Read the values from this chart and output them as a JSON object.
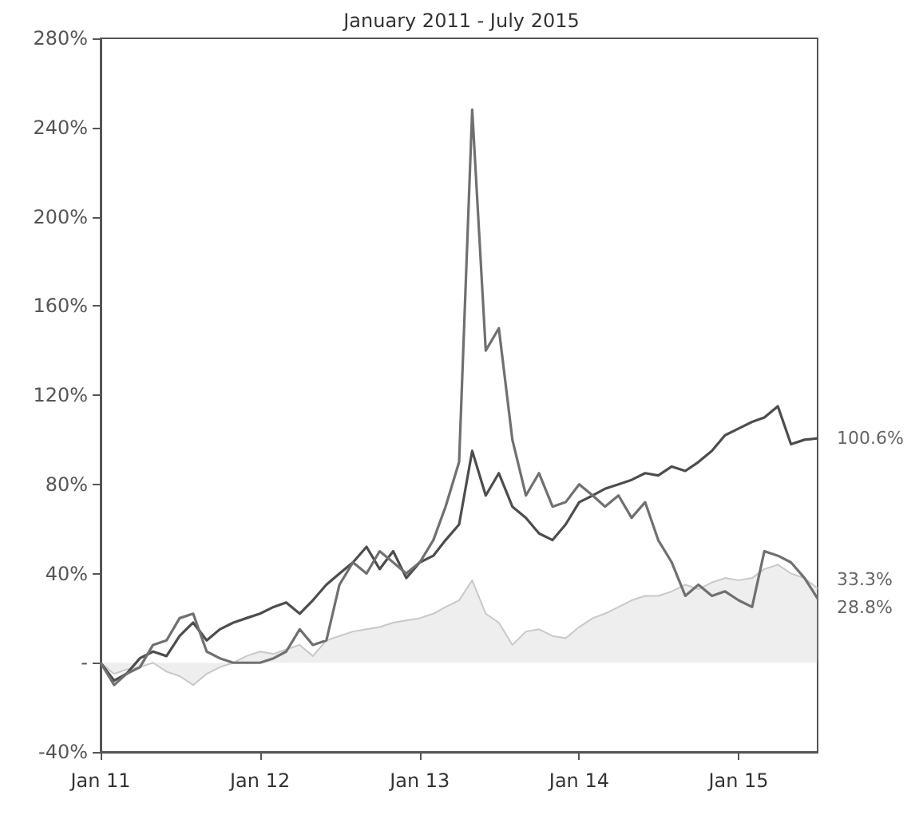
{
  "chart_data": {
    "type": "line",
    "title": "January 2011 - July 2015",
    "x": [
      "2011-01",
      "2011-02",
      "2011-03",
      "2011-04",
      "2011-05",
      "2011-06",
      "2011-07",
      "2011-08",
      "2011-09",
      "2011-10",
      "2011-11",
      "2011-12",
      "2012-01",
      "2012-02",
      "2012-03",
      "2012-04",
      "2012-05",
      "2012-06",
      "2012-07",
      "2012-08",
      "2012-09",
      "2012-10",
      "2012-11",
      "2012-12",
      "2013-01",
      "2013-02",
      "2013-03",
      "2013-04",
      "2013-05",
      "2013-06",
      "2013-07",
      "2013-08",
      "2013-09",
      "2013-10",
      "2013-11",
      "2013-12",
      "2014-01",
      "2014-02",
      "2014-03",
      "2014-04",
      "2014-05",
      "2014-06",
      "2014-07",
      "2014-08",
      "2014-09",
      "2014-10",
      "2014-11",
      "2014-12",
      "2015-01",
      "2015-02",
      "2015-03",
      "2015-04",
      "2015-05",
      "2015-06",
      "2015-07"
    ],
    "series": [
      {
        "type": "area",
        "color": "#c8c8c8",
        "values": [
          0,
          -5,
          -3,
          -2,
          0,
          -4,
          -6,
          -10,
          -5,
          -2,
          0,
          3,
          5,
          4,
          6,
          8,
          3,
          10,
          12,
          14,
          15,
          16,
          18,
          19,
          20,
          22,
          25,
          28,
          37,
          22,
          18,
          8,
          14,
          15,
          12,
          11,
          16,
          20,
          22,
          25,
          28,
          30,
          30,
          32,
          35,
          33,
          36,
          38,
          37,
          38,
          42,
          44,
          40,
          38,
          33.3
        ]
      },
      {
        "color": "#4d4d4d",
        "values": [
          0,
          -8,
          -5,
          2,
          5,
          3,
          12,
          18,
          10,
          15,
          18,
          20,
          22,
          25,
          27,
          22,
          28,
          35,
          40,
          45,
          52,
          42,
          50,
          38,
          45,
          48,
          55,
          62,
          95,
          75,
          85,
          70,
          65,
          58,
          55,
          62,
          72,
          75,
          78,
          80,
          82,
          85,
          84,
          88,
          86,
          90,
          95,
          102,
          105,
          108,
          110,
          115,
          98,
          100,
          100.6
        ]
      },
      {
        "color": "#707070",
        "values": [
          0,
          -10,
          -5,
          -2,
          8,
          10,
          20,
          22,
          5,
          2,
          0,
          0,
          0,
          2,
          5,
          15,
          8,
          10,
          35,
          45,
          40,
          50,
          45,
          40,
          45,
          55,
          70,
          90,
          248,
          140,
          150,
          100,
          75,
          85,
          70,
          72,
          80,
          75,
          70,
          75,
          65,
          72,
          55,
          45,
          30,
          35,
          30,
          32,
          28,
          25,
          50,
          48,
          45,
          38,
          28.8
        ]
      }
    ],
    "xlim": [
      "2011-01",
      "2015-07"
    ],
    "xticks": [
      {
        "value": "2011-01",
        "label": "Jan 11"
      },
      {
        "value": "2012-01",
        "label": "Jan 12"
      },
      {
        "value": "2013-01",
        "label": "Jan 13"
      },
      {
        "value": "2014-01",
        "label": "Jan 14"
      },
      {
        "value": "2015-01",
        "label": "Jan 15"
      }
    ],
    "ylim": [
      -40,
      280
    ],
    "yticks": [
      {
        "value": -40,
        "label": "-40%"
      },
      {
        "value": 0,
        "label": "-"
      },
      {
        "value": 40,
        "label": "40%"
      },
      {
        "value": 80,
        "label": "80%"
      },
      {
        "value": 120,
        "label": "120%"
      },
      {
        "value": 160,
        "label": "160%"
      },
      {
        "value": 200,
        "label": "200%"
      },
      {
        "value": 240,
        "label": "240%"
      },
      {
        "value": 280,
        "label": "280%"
      }
    ],
    "annotations": [
      {
        "text": "100.6%",
        "x": "2015-07",
        "y": 100.6
      },
      {
        "text": "33.3%",
        "x": "2015-07",
        "y": 33.3
      },
      {
        "text": "28.8%",
        "x": "2015-07",
        "y": 28.8
      }
    ],
    "marker": "none",
    "line_style": "solid"
  }
}
